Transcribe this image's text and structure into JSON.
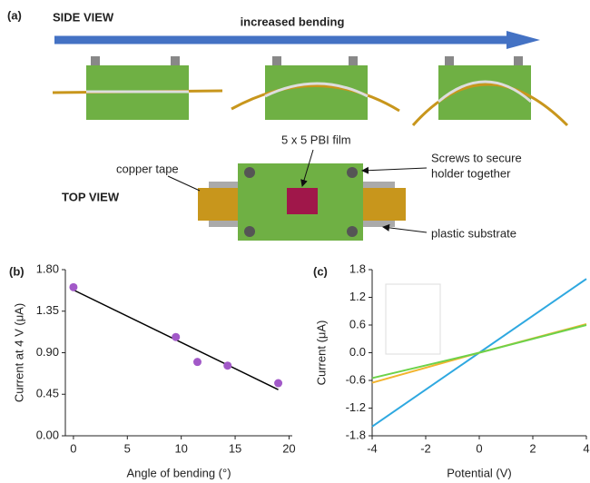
{
  "panel_a": {
    "label": "(a)",
    "side_view": "SIDE VIEW",
    "arrow_label": "increased bending",
    "top_view": "TOP VIEW",
    "film": "5 x 5 PBI film",
    "copper": "copper tape",
    "screws": [
      "Screws to secure",
      "holder together"
    ],
    "substrate": "plastic substrate"
  },
  "chart_data": [
    {
      "type": "scatter",
      "panel_label": "(b)",
      "xlabel": "Angle of bending (°)",
      "ylabel": "Current at 4 V (μA)",
      "x": [
        0,
        9.5,
        11.5,
        14.3,
        19
      ],
      "values": [
        1.61,
        1.07,
        0.8,
        0.76,
        0.57
      ],
      "color": "#a259c8",
      "fit": {
        "x": [
          0,
          19
        ],
        "values": [
          1.58,
          0.5
        ],
        "color": "#000000"
      },
      "xlim": [
        -0.75,
        20.3
      ],
      "ylim": [
        0,
        1.8
      ],
      "xticks": [
        0,
        5,
        10,
        15,
        20
      ],
      "yticks": [
        {
          "value": 0,
          "label": "0.00"
        },
        {
          "value": 0.45,
          "label": "0.45"
        },
        {
          "value": 0.9,
          "label": "0.90"
        },
        {
          "value": 1.35,
          "label": "1.35"
        },
        {
          "value": 1.8,
          "label": "1.80"
        }
      ]
    },
    {
      "type": "line",
      "panel_label": "(c)",
      "xlabel": "Potential (V)",
      "ylabel": "Current (μA)",
      "x": [
        -4,
        0,
        4
      ],
      "series": [
        {
          "color": "#2ea8e0",
          "values": [
            -1.6,
            0,
            1.6
          ]
        },
        {
          "color": "#f2b42e",
          "values": [
            -0.65,
            0,
            0.62
          ]
        },
        {
          "color": "#6cd24a",
          "values": [
            -0.55,
            0,
            0.6
          ]
        }
      ],
      "xlim": [
        -4,
        4
      ],
      "ylim": [
        -1.8,
        1.8
      ],
      "xticks": [
        -4,
        -2,
        0,
        2,
        4
      ],
      "yticks": [
        -1.8,
        -1.2,
        -0.6,
        {
          "value": 0,
          "label": "0.0"
        },
        0.6,
        1.2,
        1.8
      ]
    }
  ]
}
